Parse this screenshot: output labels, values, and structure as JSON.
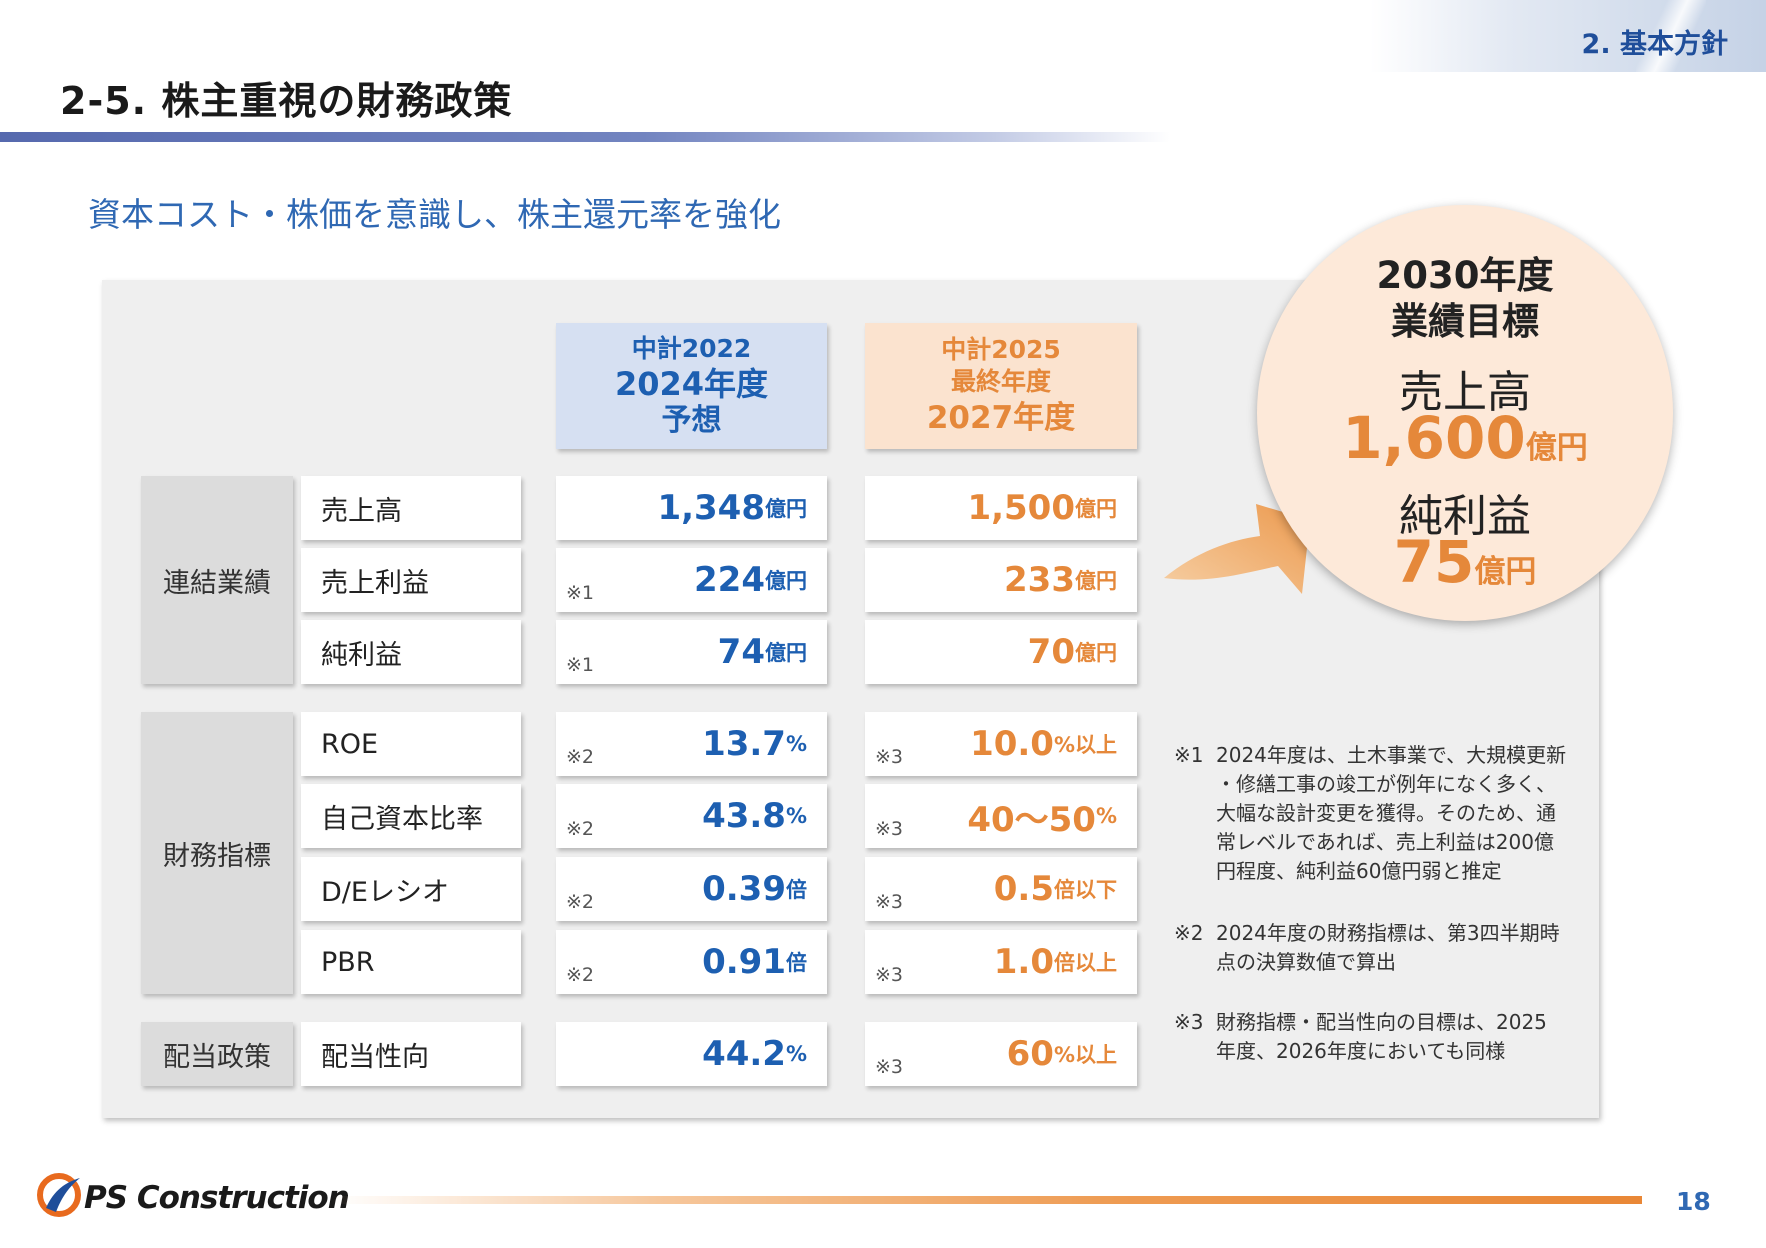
{
  "header": {
    "section": "2. 基本方針",
    "title": "2-5. 株主重視の財務政策",
    "subtitle": "資本コスト・株価を意識し、株主還元率を強化"
  },
  "columns": {
    "forecast": {
      "line1": "中計2022",
      "line2": "2024年度",
      "line3": "予想"
    },
    "plan": {
      "line1": "中計2025",
      "line2": "最終年度",
      "line3": "2027年度"
    }
  },
  "groups": {
    "consolidated": "連結業績",
    "financial": "財務指標",
    "dividend": "配当政策"
  },
  "rows": [
    {
      "label": "売上高",
      "forecast": {
        "note": "",
        "value": "1,348",
        "unit": "億円"
      },
      "plan": {
        "note": "",
        "value": "1,500",
        "unit": "億円"
      }
    },
    {
      "label": "売上利益",
      "forecast": {
        "note": "※1",
        "value": "224",
        "unit": "億円"
      },
      "plan": {
        "note": "",
        "value": "233",
        "unit": "億円"
      }
    },
    {
      "label": "純利益",
      "forecast": {
        "note": "※1",
        "value": "74",
        "unit": "億円"
      },
      "plan": {
        "note": "",
        "value": "70",
        "unit": "億円"
      }
    },
    {
      "label": "ROE",
      "forecast": {
        "note": "※2",
        "value": "13.7",
        "unit": "%"
      },
      "plan": {
        "note": "※3",
        "value": "10.0",
        "unit": "%以上"
      }
    },
    {
      "label": "自己資本比率",
      "forecast": {
        "note": "※2",
        "value": "43.8",
        "unit": "%"
      },
      "plan": {
        "note": "※3",
        "value": "40～50",
        "unit": "%"
      }
    },
    {
      "label": "D/Eレシオ",
      "forecast": {
        "note": "※2",
        "value": "0.39",
        "unit": "倍"
      },
      "plan": {
        "note": "※3",
        "value": "0.5",
        "unit": "倍以下"
      }
    },
    {
      "label": "PBR",
      "forecast": {
        "note": "※2",
        "value": "0.91",
        "unit": "倍"
      },
      "plan": {
        "note": "※3",
        "value": "1.0",
        "unit": "倍以上"
      }
    },
    {
      "label": "配当性向",
      "forecast": {
        "note": "",
        "value": "44.2",
        "unit": "%"
      },
      "plan": {
        "note": "※3",
        "value": "60",
        "unit": "%以上"
      }
    }
  ],
  "target": {
    "year": "2030年度",
    "kind": "業績目標",
    "sales_label": "売上高",
    "sales_value": "1,600",
    "sales_unit": "億円",
    "np_label": "純利益",
    "np_value": "75",
    "np_unit": "億円"
  },
  "notes": [
    {
      "mark": "※1",
      "lines": [
        "2024年度は、土木事業で、大規模更新",
        "・修繕工事の竣工が例年になく多く、",
        "大幅な設計変更を獲得。そのため、通",
        "常レベルであれば、売上利益は200億",
        "円程度、純利益60億円弱と推定"
      ]
    },
    {
      "mark": "※2",
      "lines": [
        "2024年度の財務指標は、第3四半期時",
        "点の決算数値で算出"
      ]
    },
    {
      "mark": "※3",
      "lines": [
        "財務指標・配当性向の目標は、2025",
        "年度、2026年度においても同様"
      ]
    }
  ],
  "footer": {
    "logo": "PS Construction",
    "page": "18"
  },
  "colors": {
    "blue": "#1d5fb1",
    "orange": "#e5883a",
    "title_rule": "#5669ae"
  }
}
